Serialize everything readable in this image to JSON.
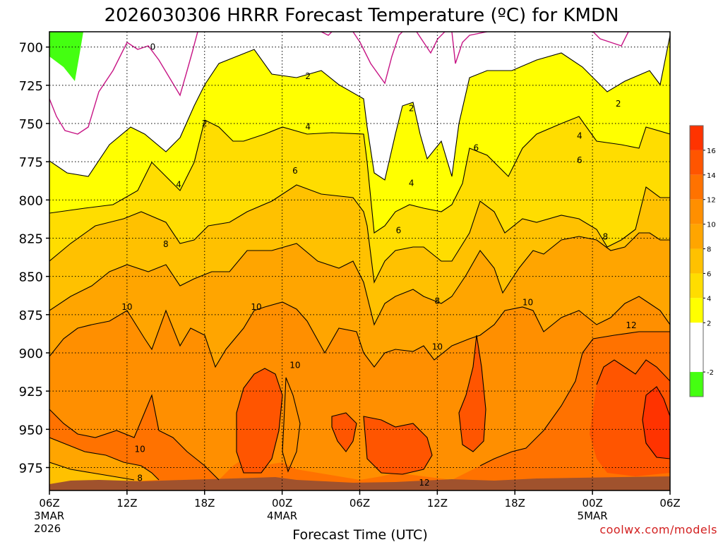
{
  "chart_data": {
    "type": "heatmap",
    "title": "2026030306 HRRR Forecast Temperature (ºC) for KMDN",
    "xlabel": "Forecast Time (UTC)",
    "ylabel": "",
    "y_axis": {
      "ticks": [
        700,
        725,
        750,
        775,
        800,
        825,
        850,
        875,
        900,
        925,
        950,
        975
      ],
      "range": [
        990,
        690
      ],
      "unit": "hPa"
    },
    "x_axis": {
      "range_hours": [
        0,
        48
      ],
      "ticks": [
        {
          "hour": 0,
          "label": "06Z",
          "date": "3MAR",
          "year": "2026"
        },
        {
          "hour": 6,
          "label": "12Z"
        },
        {
          "hour": 12,
          "label": "18Z"
        },
        {
          "hour": 18,
          "label": "00Z",
          "date": "4MAR"
        },
        {
          "hour": 24,
          "label": "06Z"
        },
        {
          "hour": 30,
          "label": "12Z"
        },
        {
          "hour": 36,
          "label": "18Z"
        },
        {
          "hour": 42,
          "label": "00Z",
          "date": "5MAR"
        },
        {
          "hour": 48,
          "label": "06Z"
        }
      ]
    },
    "grid": true,
    "colorbar": {
      "position": "right",
      "ticks": [
        16,
        14,
        12,
        10,
        8,
        6,
        4,
        2,
        -2
      ],
      "bins": [
        {
          "range": [
            16,
            18
          ],
          "color": "#FF3300"
        },
        {
          "range": [
            14,
            16
          ],
          "color": "#FF5500"
        },
        {
          "range": [
            12,
            14
          ],
          "color": "#FF7200"
        },
        {
          "range": [
            10,
            12
          ],
          "color": "#FF8F00"
        },
        {
          "range": [
            8,
            10
          ],
          "color": "#FFA500"
        },
        {
          "range": [
            6,
            8
          ],
          "color": "#FFC100"
        },
        {
          "range": [
            4,
            6
          ],
          "color": "#FFDD00"
        },
        {
          "range": [
            2,
            4
          ],
          "color": "#FFFF00"
        },
        {
          "range": [
            -2,
            2
          ],
          "color": "#FFFFFF"
        },
        {
          "range": [
            -4,
            -2
          ],
          "color": "#44FF11"
        }
      ]
    },
    "contour_labels": [
      {
        "text": "0",
        "hour": 8.0,
        "hPa": 700
      },
      {
        "text": "2",
        "hour": 20.0,
        "hPa": 719
      },
      {
        "text": "2",
        "hour": 28.0,
        "hPa": 740
      },
      {
        "text": "2",
        "hour": 44.0,
        "hPa": 737
      },
      {
        "text": "2",
        "hour": 12.0,
        "hPa": 750
      },
      {
        "text": "4",
        "hour": 20.0,
        "hPa": 752
      },
      {
        "text": "4",
        "hour": 41.0,
        "hPa": 758
      },
      {
        "text": "4",
        "hour": 10.0,
        "hPa": 790
      },
      {
        "text": "4",
        "hour": 28.0,
        "hPa": 789
      },
      {
        "text": "6",
        "hour": 19.0,
        "hPa": 781
      },
      {
        "text": "6",
        "hour": 33.0,
        "hPa": 766
      },
      {
        "text": "6",
        "hour": 41.0,
        "hPa": 774
      },
      {
        "text": "6",
        "hour": 27.0,
        "hPa": 820
      },
      {
        "text": "8",
        "hour": 9.0,
        "hPa": 829
      },
      {
        "text": "8",
        "hour": 43.0,
        "hPa": 824
      },
      {
        "text": "8",
        "hour": 30.0,
        "hPa": 866
      },
      {
        "text": "10",
        "hour": 6.0,
        "hPa": 870
      },
      {
        "text": "10",
        "hour": 16.0,
        "hPa": 870
      },
      {
        "text": "10",
        "hour": 37.0,
        "hPa": 867
      },
      {
        "text": "10",
        "hour": 30.0,
        "hPa": 896
      },
      {
        "text": "10",
        "hour": 19.0,
        "hPa": 908
      },
      {
        "text": "10",
        "hour": 7.0,
        "hPa": 963
      },
      {
        "text": "8",
        "hour": 7.0,
        "hPa": 982
      },
      {
        "text": "12",
        "hour": 45.0,
        "hPa": 882
      },
      {
        "text": "12",
        "hour": 29.0,
        "hPa": 985
      }
    ]
  },
  "credit": "coolwx.com/models"
}
